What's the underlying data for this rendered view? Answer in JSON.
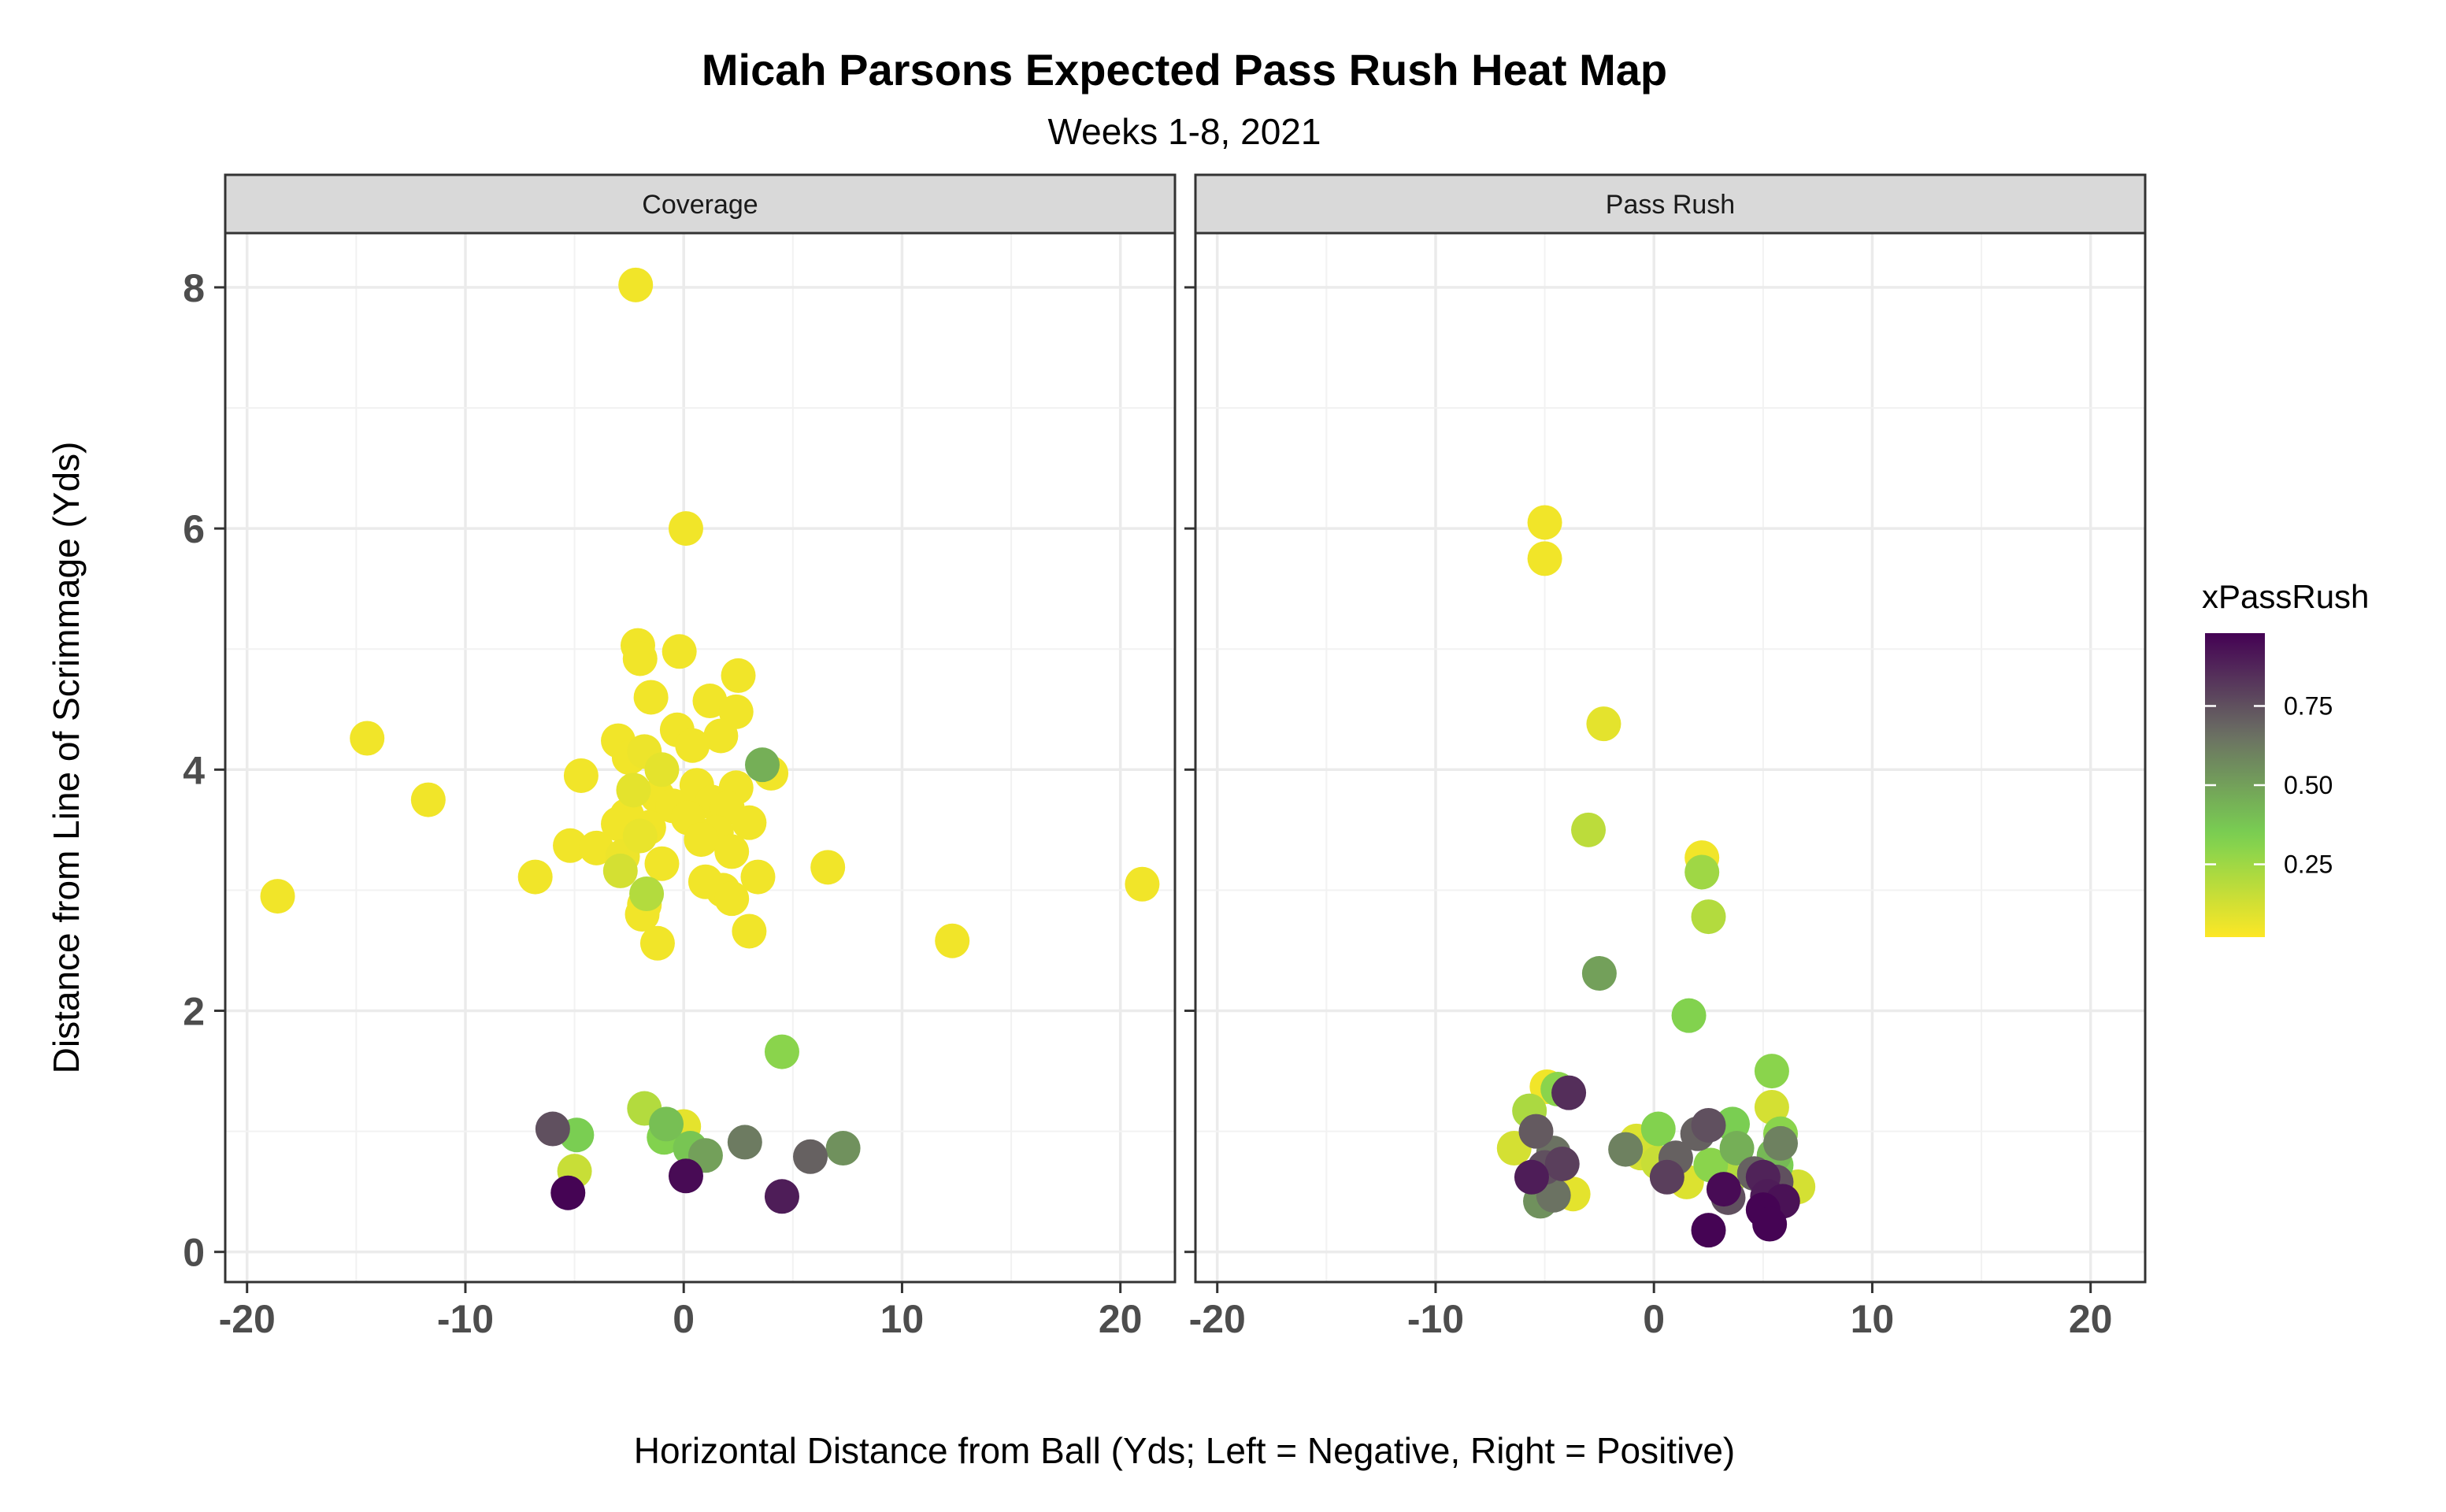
{
  "chart_data": {
    "type": "scatter",
    "title": "Micah Parsons Expected Pass Rush Heat Map",
    "subtitle": "Weeks 1-8, 2021",
    "xlabel": "Horizontal Distance from Ball (Yds; Left = Negative, Right = Positive)",
    "ylabel": "Distance from Line of Scrimmage (Yds)",
    "xlim": [
      -21,
      22.5
    ],
    "ylim": [
      -0.25,
      8.45
    ],
    "x_ticks": [
      -20,
      -10,
      0,
      10,
      20
    ],
    "y_ticks": [
      0,
      2,
      4,
      6,
      8
    ],
    "x_tick_labels": [
      "-20",
      "-10",
      "0",
      "10",
      "20"
    ],
    "y_tick_labels": [
      "0",
      "2",
      "4",
      "6",
      "8"
    ],
    "grid": true,
    "legend": {
      "title": "xPassRush",
      "position": "right",
      "range": [
        0.02,
        0.98
      ],
      "breaks": [
        0.25,
        0.5,
        0.75
      ],
      "break_labels": [
        "0.25",
        "0.50",
        "0.75"
      ],
      "colors": [
        "#fde725",
        "#7ad151",
        "#6b6f63",
        "#440154"
      ]
    },
    "panels": [
      {
        "name": "Coverage",
        "points": [
          {
            "x": -2.2,
            "y": 8.02,
            "v": 0.05
          },
          {
            "x": 0.1,
            "y": 6.0,
            "v": 0.05
          },
          {
            "x": -2.1,
            "y": 5.03,
            "v": 0.05
          },
          {
            "x": -0.2,
            "y": 4.98,
            "v": 0.05
          },
          {
            "x": -2.0,
            "y": 4.92,
            "v": 0.05
          },
          {
            "x": 2.5,
            "y": 4.78,
            "v": 0.05
          },
          {
            "x": -1.5,
            "y": 4.6,
            "v": 0.05
          },
          {
            "x": 1.2,
            "y": 4.57,
            "v": 0.05
          },
          {
            "x": 2.4,
            "y": 4.48,
            "v": 0.05
          },
          {
            "x": -0.3,
            "y": 4.33,
            "v": 0.05
          },
          {
            "x": 1.7,
            "y": 4.28,
            "v": 0.05
          },
          {
            "x": -14.5,
            "y": 4.26,
            "v": 0.05
          },
          {
            "x": -3.0,
            "y": 4.24,
            "v": 0.05
          },
          {
            "x": 0.4,
            "y": 4.2,
            "v": 0.05
          },
          {
            "x": -1.8,
            "y": 4.15,
            "v": 0.06
          },
          {
            "x": -2.5,
            "y": 4.1,
            "v": 0.05
          },
          {
            "x": 3.6,
            "y": 4.04,
            "v": 0.45
          },
          {
            "x": -1.0,
            "y": 4.0,
            "v": 0.08
          },
          {
            "x": 4.0,
            "y": 3.97,
            "v": 0.05
          },
          {
            "x": -4.7,
            "y": 3.95,
            "v": 0.05
          },
          {
            "x": 0.6,
            "y": 3.87,
            "v": 0.05
          },
          {
            "x": 2.4,
            "y": 3.85,
            "v": 0.05
          },
          {
            "x": -2.3,
            "y": 3.83,
            "v": 0.08
          },
          {
            "x": -1.2,
            "y": 3.78,
            "v": 0.05
          },
          {
            "x": -11.7,
            "y": 3.75,
            "v": 0.05
          },
          {
            "x": 1.3,
            "y": 3.73,
            "v": 0.05
          },
          {
            "x": -0.5,
            "y": 3.7,
            "v": 0.05
          },
          {
            "x": 2.0,
            "y": 3.68,
            "v": 0.05
          },
          {
            "x": -2.6,
            "y": 3.62,
            "v": 0.05
          },
          {
            "x": 0.2,
            "y": 3.6,
            "v": 0.05
          },
          {
            "x": 3.0,
            "y": 3.56,
            "v": 0.05
          },
          {
            "x": -3.0,
            "y": 3.55,
            "v": 0.05
          },
          {
            "x": -1.6,
            "y": 3.52,
            "v": 0.05
          },
          {
            "x": 1.5,
            "y": 3.48,
            "v": 0.05
          },
          {
            "x": -2.0,
            "y": 3.45,
            "v": 0.07
          },
          {
            "x": 0.8,
            "y": 3.42,
            "v": 0.05
          },
          {
            "x": -5.2,
            "y": 3.37,
            "v": 0.05
          },
          {
            "x": -4.0,
            "y": 3.35,
            "v": 0.05
          },
          {
            "x": 2.2,
            "y": 3.32,
            "v": 0.05
          },
          {
            "x": -2.8,
            "y": 3.28,
            "v": 0.06
          },
          {
            "x": -1.0,
            "y": 3.22,
            "v": 0.05
          },
          {
            "x": 6.6,
            "y": 3.19,
            "v": 0.05
          },
          {
            "x": -2.9,
            "y": 3.16,
            "v": 0.12
          },
          {
            "x": 3.4,
            "y": 3.11,
            "v": 0.05
          },
          {
            "x": -6.8,
            "y": 3.11,
            "v": 0.05
          },
          {
            "x": 1.0,
            "y": 3.07,
            "v": 0.05
          },
          {
            "x": 21.0,
            "y": 3.05,
            "v": 0.05
          },
          {
            "x": 1.8,
            "y": 3.0,
            "v": 0.05
          },
          {
            "x": -1.7,
            "y": 2.97,
            "v": 0.2
          },
          {
            "x": -18.6,
            "y": 2.95,
            "v": 0.05
          },
          {
            "x": 2.2,
            "y": 2.93,
            "v": 0.05
          },
          {
            "x": -1.8,
            "y": 2.88,
            "v": 0.05
          },
          {
            "x": -1.9,
            "y": 2.8,
            "v": 0.05
          },
          {
            "x": 3.0,
            "y": 2.66,
            "v": 0.05
          },
          {
            "x": 12.3,
            "y": 2.58,
            "v": 0.05
          },
          {
            "x": -1.2,
            "y": 2.56,
            "v": 0.05
          },
          {
            "x": 4.5,
            "y": 1.66,
            "v": 0.3
          },
          {
            "x": -1.8,
            "y": 1.19,
            "v": 0.2
          },
          {
            "x": -0.8,
            "y": 1.06,
            "v": 0.4
          },
          {
            "x": 0.0,
            "y": 1.04,
            "v": 0.08
          },
          {
            "x": -6.0,
            "y": 1.02,
            "v": 0.75
          },
          {
            "x": -4.9,
            "y": 0.97,
            "v": 0.35
          },
          {
            "x": -0.9,
            "y": 0.95,
            "v": 0.32
          },
          {
            "x": 2.8,
            "y": 0.91,
            "v": 0.62
          },
          {
            "x": 0.3,
            "y": 0.86,
            "v": 0.38
          },
          {
            "x": 7.3,
            "y": 0.86,
            "v": 0.55
          },
          {
            "x": 1.0,
            "y": 0.8,
            "v": 0.5
          },
          {
            "x": 5.8,
            "y": 0.79,
            "v": 0.7
          },
          {
            "x": -5.0,
            "y": 0.67,
            "v": 0.15
          },
          {
            "x": 0.1,
            "y": 0.63,
            "v": 0.95
          },
          {
            "x": -5.3,
            "y": 0.49,
            "v": 0.97
          },
          {
            "x": 4.5,
            "y": 0.46,
            "v": 0.9
          }
        ]
      },
      {
        "name": "Pass Rush",
        "points": [
          {
            "x": -5.0,
            "y": 6.05,
            "v": 0.05
          },
          {
            "x": -5.0,
            "y": 5.75,
            "v": 0.05
          },
          {
            "x": -2.3,
            "y": 4.38,
            "v": 0.08
          },
          {
            "x": -3.0,
            "y": 3.5,
            "v": 0.18
          },
          {
            "x": 2.2,
            "y": 3.27,
            "v": 0.05
          },
          {
            "x": 2.2,
            "y": 3.15,
            "v": 0.25
          },
          {
            "x": 2.5,
            "y": 2.78,
            "v": 0.2
          },
          {
            "x": -2.5,
            "y": 2.31,
            "v": 0.5
          },
          {
            "x": 1.6,
            "y": 1.96,
            "v": 0.32
          },
          {
            "x": 5.4,
            "y": 1.5,
            "v": 0.3
          },
          {
            "x": -3.9,
            "y": 1.32,
            "v": 0.85
          },
          {
            "x": -4.4,
            "y": 1.35,
            "v": 0.3
          },
          {
            "x": -4.9,
            "y": 1.37,
            "v": 0.05
          },
          {
            "x": 5.4,
            "y": 1.2,
            "v": 0.12
          },
          {
            "x": -5.7,
            "y": 1.17,
            "v": 0.22
          },
          {
            "x": 2.5,
            "y": 1.05,
            "v": 0.75
          },
          {
            "x": 0.2,
            "y": 1.02,
            "v": 0.32
          },
          {
            "x": -5.4,
            "y": 1.0,
            "v": 0.72
          },
          {
            "x": 5.8,
            "y": 0.98,
            "v": 0.3
          },
          {
            "x": 3.6,
            "y": 1.06,
            "v": 0.35
          },
          {
            "x": 2.0,
            "y": 0.98,
            "v": 0.7
          },
          {
            "x": -0.8,
            "y": 0.92,
            "v": 0.1
          },
          {
            "x": 5.8,
            "y": 0.9,
            "v": 0.6
          },
          {
            "x": -6.4,
            "y": 0.86,
            "v": 0.12
          },
          {
            "x": 3.8,
            "y": 0.86,
            "v": 0.45
          },
          {
            "x": -1.3,
            "y": 0.85,
            "v": 0.6
          },
          {
            "x": -0.6,
            "y": 0.82,
            "v": 0.12
          },
          {
            "x": 5.5,
            "y": 0.8,
            "v": 0.42
          },
          {
            "x": 1.0,
            "y": 0.78,
            "v": 0.7
          },
          {
            "x": -4.6,
            "y": 0.82,
            "v": 0.65
          },
          {
            "x": 0.2,
            "y": 0.74,
            "v": 0.15
          },
          {
            "x": -4.2,
            "y": 0.73,
            "v": 0.8
          },
          {
            "x": 5.6,
            "y": 0.72,
            "v": 0.35
          },
          {
            "x": 2.6,
            "y": 0.72,
            "v": 0.3
          },
          {
            "x": -5.0,
            "y": 0.7,
            "v": 0.75
          },
          {
            "x": 4.6,
            "y": 0.65,
            "v": 0.7
          },
          {
            "x": -5.6,
            "y": 0.62,
            "v": 0.9
          },
          {
            "x": 0.6,
            "y": 0.62,
            "v": 0.8
          },
          {
            "x": 3.4,
            "y": 0.6,
            "v": 0.2
          },
          {
            "x": 5.0,
            "y": 0.62,
            "v": 0.88
          },
          {
            "x": 5.6,
            "y": 0.58,
            "v": 0.75
          },
          {
            "x": -5.0,
            "y": 0.56,
            "v": 0.45
          },
          {
            "x": 1.5,
            "y": 0.58,
            "v": 0.1
          },
          {
            "x": 3.2,
            "y": 0.52,
            "v": 0.95
          },
          {
            "x": 6.6,
            "y": 0.54,
            "v": 0.12
          },
          {
            "x": -3.7,
            "y": 0.48,
            "v": 0.08
          },
          {
            "x": -4.6,
            "y": 0.47,
            "v": 0.65
          },
          {
            "x": 5.2,
            "y": 0.46,
            "v": 0.9
          },
          {
            "x": 3.4,
            "y": 0.45,
            "v": 0.75
          },
          {
            "x": -5.2,
            "y": 0.42,
            "v": 0.55
          },
          {
            "x": 5.9,
            "y": 0.42,
            "v": 0.93
          },
          {
            "x": 5.0,
            "y": 0.35,
            "v": 0.97
          },
          {
            "x": 5.3,
            "y": 0.23,
            "v": 0.97
          },
          {
            "x": 2.5,
            "y": 0.18,
            "v": 0.97
          }
        ]
      }
    ]
  }
}
